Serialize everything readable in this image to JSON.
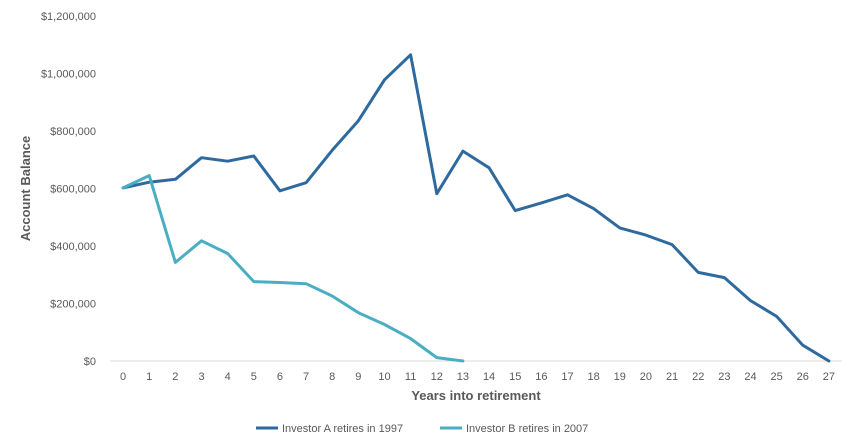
{
  "chart_data": {
    "type": "line",
    "title": "",
    "xlabel": "Years into retirement",
    "ylabel": "Account Balance",
    "x": [
      0,
      1,
      2,
      3,
      4,
      5,
      6,
      7,
      8,
      9,
      10,
      11,
      12,
      13,
      14,
      15,
      16,
      17,
      18,
      19,
      20,
      21,
      22,
      23,
      24,
      25,
      26,
      27
    ],
    "x_tick_labels": [
      "0",
      "1",
      "2",
      "3",
      "4",
      "5",
      "6",
      "7",
      "8",
      "9",
      "10",
      "11",
      "12",
      "13",
      "14",
      "15",
      "16",
      "17",
      "18",
      "19",
      "20",
      "21",
      "22",
      "23",
      "24",
      "25",
      "26",
      "27"
    ],
    "ylim": [
      0,
      1200000
    ],
    "y_ticks": [
      0,
      200000,
      400000,
      600000,
      800000,
      1000000,
      1200000
    ],
    "y_tick_labels": [
      "$0",
      "$200,000",
      "$400,000",
      "$600,000",
      "$800,000",
      "$1,000,000",
      "$1,200,000"
    ],
    "grid": false,
    "legend_position": "bottom",
    "series": [
      {
        "name": "Investor A retires in 1997",
        "color": "#2e6a9e",
        "x": [
          0,
          1,
          2,
          3,
          4,
          5,
          6,
          7,
          8,
          9,
          10,
          11,
          12,
          13,
          14,
          15,
          16,
          17,
          18,
          19,
          20,
          21,
          22,
          23,
          24,
          25,
          26,
          27
        ],
        "values": [
          602000,
          622000,
          632000,
          707000,
          695000,
          713000,
          592000,
          620000,
          733000,
          836000,
          978000,
          1065000,
          582000,
          730000,
          672000,
          523000,
          550000,
          578000,
          530000,
          463000,
          438000,
          405000,
          308000,
          290000,
          210000,
          155000,
          55000,
          0
        ]
      },
      {
        "name": "Investor B retires in 2007",
        "color": "#4aaec2",
        "x": [
          0,
          1,
          2,
          3,
          4,
          5,
          6,
          7,
          8,
          9,
          10,
          11,
          12,
          13
        ],
        "values": [
          602000,
          645000,
          343000,
          418000,
          374000,
          276000,
          273000,
          269000,
          226000,
          168000,
          127000,
          78000,
          12000,
          0
        ]
      }
    ]
  }
}
